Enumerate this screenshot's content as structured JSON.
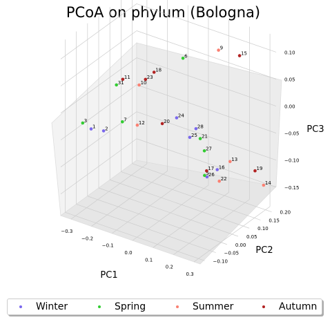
{
  "chart_data": {
    "type": "scatter",
    "projection": "3d",
    "title": "PCoA on phylum (Bologna)",
    "xlabel": "PC1",
    "ylabel": "PC2",
    "zlabel": "PC3",
    "xlim": [
      -0.35,
      0.33
    ],
    "ylim": [
      -0.12,
      0.22
    ],
    "zlim": [
      -0.19,
      0.13
    ],
    "xticks": [
      "−0.3",
      "−0.2",
      "−0.1",
      "0.0",
      "0.1",
      "0.2",
      "0.3"
    ],
    "yticks": [
      "−0.10",
      "−0.05",
      "0.00",
      "0.05",
      "0.10",
      "0.15",
      "0.20"
    ],
    "zticks": [
      "0.10",
      "0.05",
      "0.00",
      "−0.05",
      "−0.10",
      "−0.15"
    ],
    "grid": true,
    "legend_position": "bottom",
    "series": [
      {
        "name": "Winter",
        "color": "#7b68ee",
        "points": [
          {
            "label": "1",
            "x": -0.3,
            "y": -0.03,
            "z": -0.05
          },
          {
            "label": "2",
            "x": -0.25,
            "y": -0.02,
            "z": -0.05
          },
          {
            "label": "24",
            "x": 0.03,
            "y": 0.05,
            "z": -0.01
          },
          {
            "label": "25",
            "x": 0.04,
            "y": 0.1,
            "z": -0.06
          },
          {
            "label": "28",
            "x": 0.07,
            "y": 0.1,
            "z": -0.04
          },
          {
            "label": "26",
            "x": 0.08,
            "y": 0.14,
            "z": -0.14
          },
          {
            "label": "16",
            "x": 0.13,
            "y": 0.14,
            "z": -0.12
          }
        ]
      },
      {
        "name": "Spring",
        "color": "#32cd32",
        "points": [
          {
            "label": "3",
            "x": -0.33,
            "y": -0.04,
            "z": -0.04
          },
          {
            "label": "31",
            "x": -0.22,
            "y": 0.01,
            "z": 0.03
          },
          {
            "label": "7",
            "x": -0.18,
            "y": 0.0,
            "z": -0.03
          },
          {
            "label": "6",
            "x": 0.05,
            "y": 0.06,
            "z": 0.1
          },
          {
            "label": "21",
            "x": 0.08,
            "y": 0.11,
            "z": -0.06
          },
          {
            "label": "27",
            "x": 0.1,
            "y": 0.11,
            "z": -0.08
          },
          {
            "label": "5",
            "x": 0.09,
            "y": 0.12,
            "z": -0.13
          }
        ]
      },
      {
        "name": "Summer",
        "color": "#fa8072",
        "points": [
          {
            "label": "10",
            "x": -0.12,
            "y": 0.02,
            "z": 0.04
          },
          {
            "label": "12",
            "x": -0.14,
            "y": 0.03,
            "z": -0.04
          },
          {
            "label": "9",
            "x": 0.18,
            "y": 0.1,
            "z": 0.12
          },
          {
            "label": "13",
            "x": 0.16,
            "y": 0.17,
            "z": -0.11
          },
          {
            "label": "22",
            "x": 0.14,
            "y": 0.14,
            "z": -0.14
          },
          {
            "label": "14",
            "x": 0.28,
            "y": 0.21,
            "z": -0.15
          }
        ]
      },
      {
        "name": "Autumn",
        "color": "#b22222",
        "points": [
          {
            "label": "18",
            "x": -0.08,
            "y": 0.05,
            "z": 0.06
          },
          {
            "label": "23",
            "x": -0.1,
            "y": 0.03,
            "z": 0.05
          },
          {
            "label": "11",
            "x": -0.2,
            "y": 0.02,
            "z": 0.04
          },
          {
            "label": "20",
            "x": -0.04,
            "y": 0.05,
            "z": -0.03
          },
          {
            "label": "15",
            "x": 0.25,
            "y": 0.13,
            "z": 0.11
          },
          {
            "label": "17",
            "x": 0.1,
            "y": 0.12,
            "z": -0.12
          },
          {
            "label": "19",
            "x": 0.26,
            "y": 0.19,
            "z": -0.12
          }
        ]
      }
    ]
  }
}
